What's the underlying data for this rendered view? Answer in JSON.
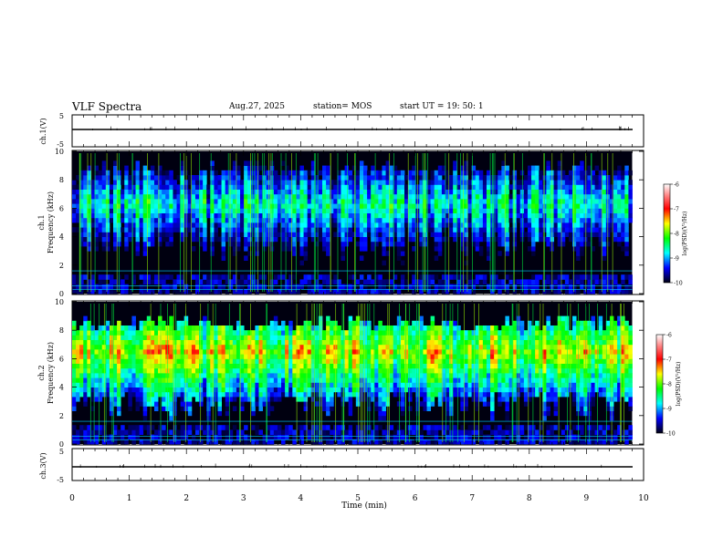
{
  "header": {
    "title": "VLF Spectra",
    "date": "Aug.27, 2025",
    "station": "station= MOS",
    "start": "start  UT =   19: 50: 1"
  },
  "panels": {
    "ch1v": {
      "ylabel": "ch.1(V)",
      "ticks": [
        "5",
        "-5"
      ]
    },
    "ch1": {
      "ylabel_top": "ch.1",
      "ylabel_bottom": "Frequency (kHz)",
      "ticks": [
        "10",
        "8",
        "6",
        "4",
        "2",
        "0"
      ]
    },
    "ch2": {
      "ylabel_top": "ch.2",
      "ylabel_bottom": "Frequency (kHz)",
      "ticks": [
        "10",
        "8",
        "6",
        "4",
        "2",
        "0"
      ]
    },
    "ch3v": {
      "ylabel": "ch.3(V)",
      "ticks": [
        "5",
        "-5"
      ]
    }
  },
  "xaxis": {
    "label": "Time  (min)",
    "ticks": [
      "0",
      "1",
      "2",
      "3",
      "4",
      "5",
      "6",
      "7",
      "8",
      "9",
      "10"
    ]
  },
  "colorbar": {
    "label": "log(PSD)(V²/Hz)",
    "ticks": [
      "-6",
      "-7",
      "-8",
      "-9",
      "-10"
    ]
  },
  "chart_data": {
    "type": "heatmap",
    "title": "VLF Spectra",
    "xlabel": "Time  (min)",
    "xlim": [
      0,
      10
    ],
    "data_end_min": 9.8,
    "series": [
      {
        "name": "ch.1(V)",
        "kind": "waveform",
        "ylim": [
          -5,
          5
        ],
        "level": -1.3
      },
      {
        "name": "ch.1",
        "kind": "spectrogram",
        "ylabel": "Frequency (kHz)",
        "ylim": [
          0,
          10
        ],
        "zlim": [
          -10,
          -6
        ],
        "band_khz": [
          3,
          9.5
        ],
        "band_peak_logpsd": -8.0,
        "background_logpsd": -10
      },
      {
        "name": "ch.2",
        "kind": "spectrogram",
        "ylabel": "Frequency (kHz)",
        "ylim": [
          0,
          10
        ],
        "zlim": [
          -10,
          -6
        ],
        "band_khz": [
          3,
          9
        ],
        "band_peak_logpsd": -7.0,
        "band_center_khz": 6.5,
        "background_logpsd": -10
      },
      {
        "name": "ch.3(V)",
        "kind": "waveform",
        "ylim": [
          -5,
          5
        ],
        "level": -1.3
      }
    ],
    "colors": {
      "background": "#000000",
      "colormap": [
        "#ffffff",
        "#ff0000",
        "#ffff00",
        "#00ff00",
        "#00ffff",
        "#0000ff",
        "#000000"
      ]
    }
  }
}
